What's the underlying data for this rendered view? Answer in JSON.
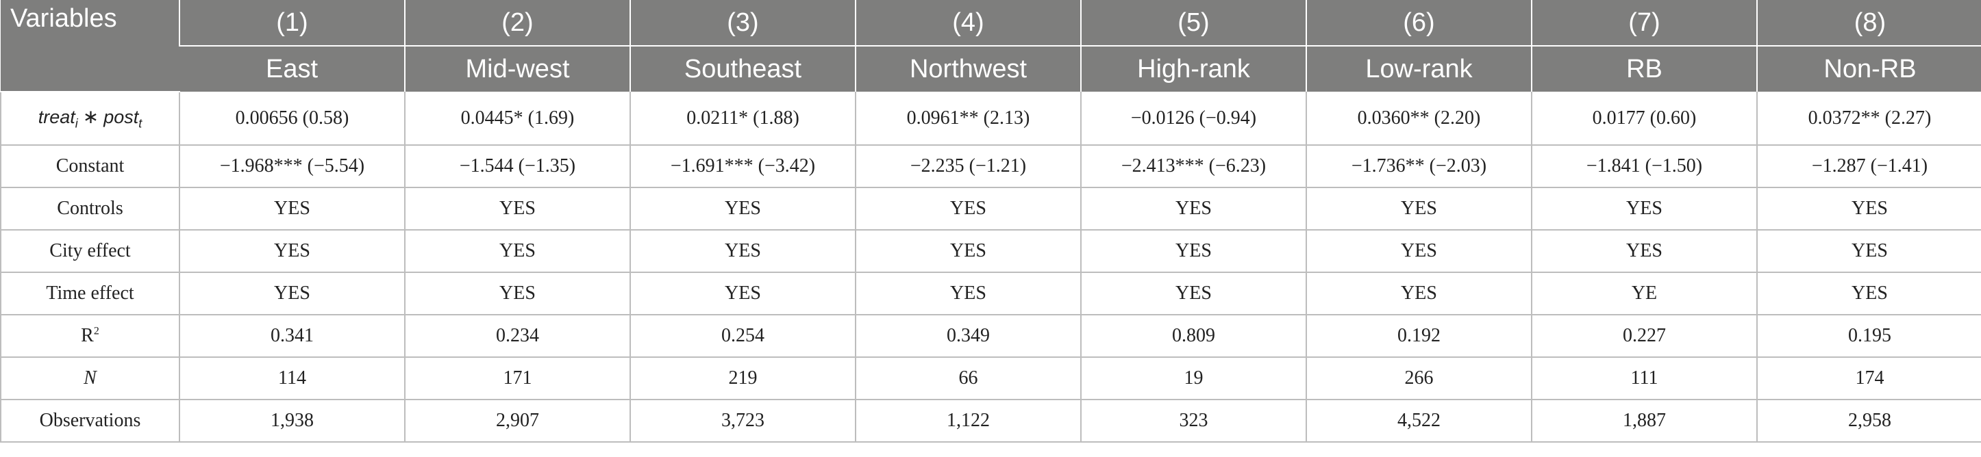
{
  "table": {
    "header_variables": "Variables",
    "column_numbers": [
      "(1)",
      "(2)",
      "(3)",
      "(4)",
      "(5)",
      "(6)",
      "(7)",
      "(8)"
    ],
    "column_names": [
      "East",
      "Mid-west",
      "Southeast",
      "Northwest",
      "High-rank",
      "Low-rank",
      "RB",
      "Non-RB"
    ],
    "interaction_label": {
      "treat": "treat",
      "treat_sub": "i",
      "op": " ∗ ",
      "post": "post",
      "post_sub": "t"
    },
    "r2_label": {
      "base": "R",
      "sup": "2"
    },
    "rows": [
      {
        "label": "treat_i ∗ post_t",
        "cells": [
          "0.00656 (0.58)",
          "0.0445* (1.69)",
          "0.0211* (1.88)",
          "0.0961** (2.13)",
          "−0.0126 (−0.94)",
          "0.0360** (2.20)",
          "0.0177 (0.60)",
          "0.0372** (2.27)"
        ]
      },
      {
        "label": "Constant",
        "cells": [
          "−1.968*** (−5.54)",
          "−1.544 (−1.35)",
          "−1.691*** (−3.42)",
          "−2.235 (−1.21)",
          "−2.413*** (−6.23)",
          "−1.736** (−2.03)",
          "−1.841 (−1.50)",
          "−1.287 (−1.41)"
        ]
      },
      {
        "label": "Controls",
        "cells": [
          "YES",
          "YES",
          "YES",
          "YES",
          "YES",
          "YES",
          "YES",
          "YES"
        ]
      },
      {
        "label": "City effect",
        "cells": [
          "YES",
          "YES",
          "YES",
          "YES",
          "YES",
          "YES",
          "YES",
          "YES"
        ]
      },
      {
        "label": "Time effect",
        "cells": [
          "YES",
          "YES",
          "YES",
          "YES",
          "YES",
          "YES",
          "YE",
          "YES"
        ]
      },
      {
        "label": "R2",
        "cells": [
          "0.341",
          "0.234",
          "0.254",
          "0.349",
          "0.809",
          "0.192",
          "0.227",
          "0.195"
        ]
      },
      {
        "label": "N",
        "cells": [
          "114",
          "171",
          "219",
          "66",
          "19",
          "266",
          "111",
          "174"
        ]
      },
      {
        "label": "Observations",
        "cells": [
          "1,938",
          "2,907",
          "3,723",
          "1,122",
          "323",
          "4,522",
          "1,887",
          "2,958"
        ]
      }
    ]
  }
}
